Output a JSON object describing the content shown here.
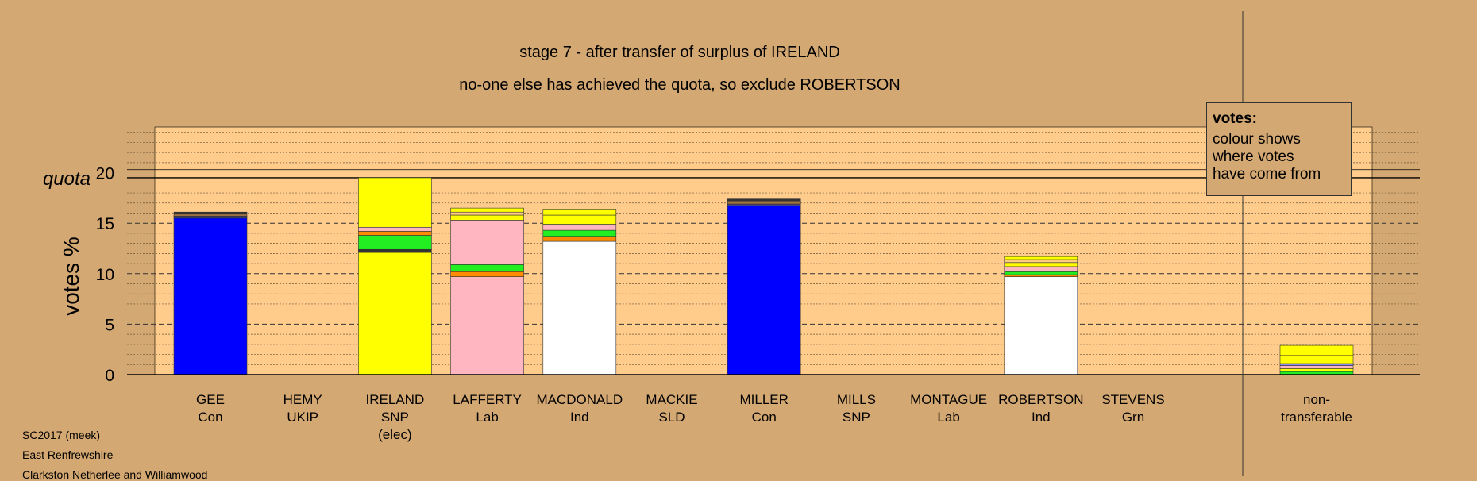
{
  "chart_data": {
    "type": "bar",
    "stacked": true,
    "title": "stage 7 - after transfer of surplus of IRELAND",
    "subtitle": "no-one else has achieved the quota, so exclude ROBERTSON",
    "ylabel": "votes %",
    "quota_label": "quota",
    "quota_value": 19.5,
    "ylim": [
      0,
      24.5
    ],
    "yticks": [
      0,
      5,
      10,
      15,
      20
    ],
    "grid": true,
    "categories": [
      {
        "name": "GEE",
        "party": "Con",
        "note": ""
      },
      {
        "name": "HEMY",
        "party": "UKIP",
        "note": ""
      },
      {
        "name": "IRELAND",
        "party": "SNP",
        "note": "(elec)"
      },
      {
        "name": "LAFFERTY",
        "party": "Lab",
        "note": ""
      },
      {
        "name": "MACDONALD",
        "party": "Ind",
        "note": ""
      },
      {
        "name": "MACKIE",
        "party": "SLD",
        "note": ""
      },
      {
        "name": "MILLER",
        "party": "Con",
        "note": ""
      },
      {
        "name": "MILLS",
        "party": "SNP",
        "note": ""
      },
      {
        "name": "MONTAGUE",
        "party": "Lab",
        "note": ""
      },
      {
        "name": "ROBERTSON",
        "party": "Ind",
        "note": ""
      },
      {
        "name": "STEVENS",
        "party": "Grn",
        "note": ""
      }
    ],
    "nontransferable": {
      "line1": "non-",
      "line2": "transferable"
    },
    "stacks": [
      [
        {
          "v": 15.5,
          "c": "#0000ff"
        },
        {
          "v": 0.2,
          "c": "#404080"
        },
        {
          "v": 0.2,
          "c": "#a07040"
        },
        {
          "v": 0.2,
          "c": "#333333"
        }
      ],
      [],
      [
        {
          "v": 12.1,
          "c": "#ffff00"
        },
        {
          "v": 0.3,
          "c": "#333333"
        },
        {
          "v": 1.4,
          "c": "#22ee22"
        },
        {
          "v": 0.4,
          "c": "#ff8c00"
        },
        {
          "v": 0.4,
          "c": "#ffb6c1"
        },
        {
          "v": 4.9,
          "c": "#ffff00"
        }
      ],
      [
        {
          "v": 9.7,
          "c": "#ffb6c1"
        },
        {
          "v": 0.5,
          "c": "#ff8c00"
        },
        {
          "v": 0.7,
          "c": "#22ee22"
        },
        {
          "v": 4.4,
          "c": "#ffb6c1"
        },
        {
          "v": 0.5,
          "c": "#ffff00"
        },
        {
          "v": 0.3,
          "c": "#ffcc80"
        },
        {
          "v": 0.4,
          "c": "#ffff00"
        }
      ],
      [
        {
          "v": 13.2,
          "c": "#ffffff"
        },
        {
          "v": 0.5,
          "c": "#ff8c00"
        },
        {
          "v": 0.6,
          "c": "#22ee22"
        },
        {
          "v": 0.6,
          "c": "#ffb6c1"
        },
        {
          "v": 0.9,
          "c": "#ffff00"
        },
        {
          "v": 0.6,
          "c": "#ffff00"
        }
      ],
      [],
      [
        {
          "v": 16.7,
          "c": "#0000ff"
        },
        {
          "v": 0.2,
          "c": "#404080"
        },
        {
          "v": 0.3,
          "c": "#a07040"
        },
        {
          "v": 0.2,
          "c": "#333333"
        }
      ],
      [],
      [],
      [
        {
          "v": 9.7,
          "c": "#ffffff"
        },
        {
          "v": 0.2,
          "c": "#ff8c00"
        },
        {
          "v": 0.3,
          "c": "#22ee22"
        },
        {
          "v": 0.5,
          "c": "#ffb6c1"
        },
        {
          "v": 0.4,
          "c": "#ffff00"
        },
        {
          "v": 0.3,
          "c": "#ffcc80"
        },
        {
          "v": 0.3,
          "c": "#ffff00"
        }
      ],
      []
    ],
    "nontransferable_stack": [
      {
        "v": 0.3,
        "c": "#22ee22"
      },
      {
        "v": 0.3,
        "c": "#ffff00"
      },
      {
        "v": 0.3,
        "c": "#ffb6c1"
      },
      {
        "v": 0.2,
        "c": "#8888ff"
      },
      {
        "v": 0.8,
        "c": "#ffff00"
      },
      {
        "v": 1.0,
        "c": "#ffff00"
      }
    ]
  },
  "legend": {
    "title": "votes:",
    "lines": [
      "colour shows",
      "where votes",
      "have come from"
    ]
  },
  "footer": {
    "line1": "SC2017 (meek)",
    "line2": "East Renfrewshire",
    "line3": "Clarkston Netherlee and Williamwood"
  },
  "colors": {
    "background": "#d4a872",
    "plot_fill": "#ffcc8c"
  }
}
